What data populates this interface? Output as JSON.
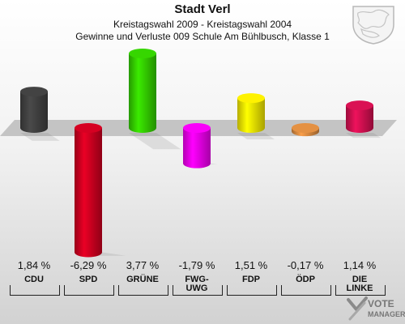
{
  "header": {
    "title": "Stadt Verl",
    "subtitle": "Kreistagswahl 2009 - Kreistagswahl 2004",
    "subtitle2": "Gewinne und Verluste 009 Schule Am Bühlbusch, Klasse 1"
  },
  "chart_data": {
    "type": "bar",
    "title": "Stadt Verl",
    "categories": [
      "CDU",
      "SPD",
      "GRÜNE",
      "FWG-UWG",
      "FDP",
      "ÖDP",
      "DIE LINKE"
    ],
    "category_lines": [
      [
        "CDU"
      ],
      [
        "SPD"
      ],
      [
        "GRÜNE"
      ],
      [
        "FWG-",
        "UWG"
      ],
      [
        "FDP"
      ],
      [
        "ÖDP"
      ],
      [
        "DIE",
        "LINKE"
      ]
    ],
    "values": [
      1.84,
      -6.29,
      3.77,
      -1.79,
      1.51,
      -0.17,
      1.14
    ],
    "value_labels": [
      "1,84 %",
      "-6,29 %",
      "3,77 %",
      "-1,79 %",
      "1,51 %",
      "-0,17 %",
      "1,14 %"
    ],
    "colors": [
      "#404040",
      "#cc0020",
      "#33cc00",
      "#ee00ee",
      "#f2e600",
      "#d98a40",
      "#d01050"
    ],
    "baseline": 0,
    "grid": false,
    "legend": "none"
  },
  "branding": {
    "logo_line1": "VOTE",
    "logo_line2": "MANAGER"
  }
}
